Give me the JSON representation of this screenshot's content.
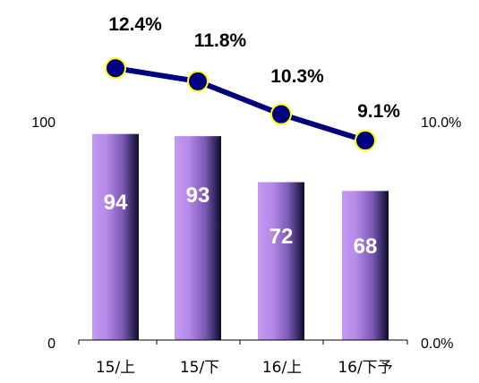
{
  "chart_data": {
    "type": "bar",
    "categories": [
      "15/上",
      "15/下",
      "16/上",
      "16/下予"
    ],
    "series": [
      {
        "values": [
          94,
          93,
          72,
          68
        ],
        "labels": [
          "94",
          "93",
          "72",
          "68"
        ]
      },
      {
        "values": [
          12.4,
          11.8,
          10.3,
          9.1
        ],
        "labels": [
          "12.4%",
          "11.8%",
          "10.3%",
          "9.1%"
        ],
        "render": "line"
      }
    ],
    "left_axis": {
      "range": [
        0,
        100
      ],
      "tick_labels": [
        "0",
        "100"
      ]
    },
    "right_axis": {
      "range": [
        0.0,
        10.0
      ],
      "tick_labels": [
        "0.0%",
        "10.0%"
      ]
    },
    "grid": false,
    "legend": "none",
    "colors": {
      "bar_light": "#c39af3",
      "bar_mid": "#7d5ab8",
      "bar_dark": "#0c0c2e",
      "line": "#00007f",
      "marker_fill": "#000080",
      "marker_edge": "#ffff00"
    }
  }
}
